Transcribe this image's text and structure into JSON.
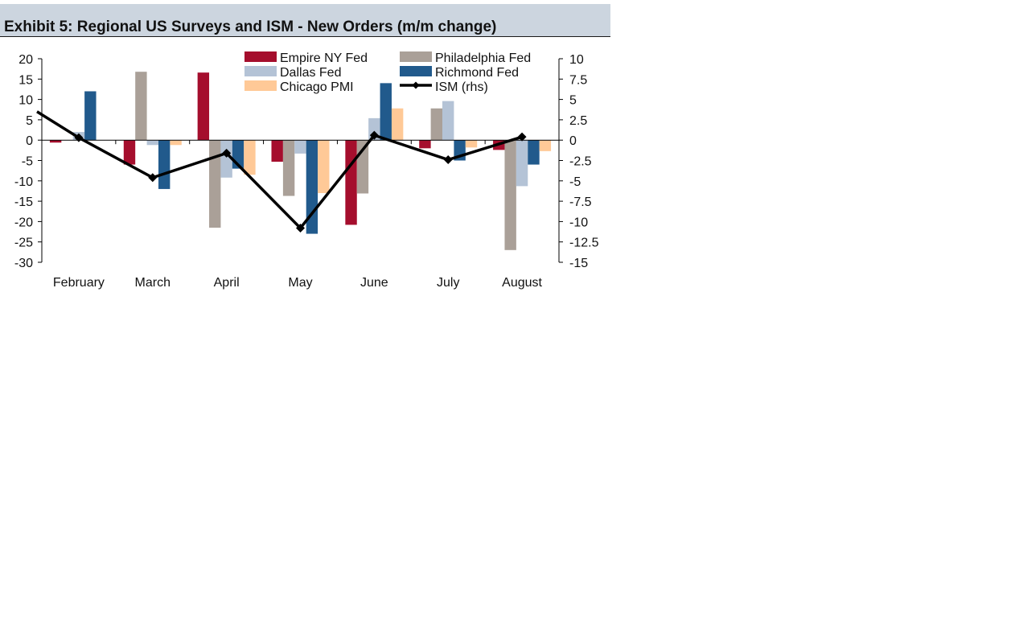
{
  "header": {
    "title": "Exhibit 5: Regional US Surveys and ISM - New Orders (m/m change)"
  },
  "colors": {
    "header_bg": "#ccd5df",
    "empire": "#a50e2d",
    "philadelphia": "#aaa098",
    "dallas": "#b4c3d6",
    "richmond": "#215a8c",
    "chicago": "#ffc997",
    "ism": "#000000"
  },
  "chart_data": {
    "type": "bar",
    "title": "Exhibit 5: Regional US Surveys and ISM - New Orders (m/m change)",
    "categories": [
      "February",
      "March",
      "April",
      "May",
      "June",
      "July",
      "August"
    ],
    "series": [
      {
        "name": "Empire NY Fed",
        "color_key": "empire",
        "axis": "left",
        "values": [
          -0.6,
          -6.0,
          16.6,
          -5.3,
          -20.8,
          -2.0,
          -2.4
        ]
      },
      {
        "name": "Philadelphia Fed",
        "color_key": "philadelphia",
        "axis": "left",
        "values": [
          0.0,
          16.8,
          -21.5,
          -13.7,
          -13.1,
          7.8,
          -27.0
        ]
      },
      {
        "name": "Dallas Fed",
        "color_key": "dallas",
        "axis": "left",
        "values": [
          2.0,
          -1.2,
          -9.2,
          -3.3,
          5.4,
          9.6,
          -11.3
        ]
      },
      {
        "name": "Richmond Fed",
        "color_key": "richmond",
        "axis": "left",
        "values": [
          12.0,
          -12.0,
          -7.0,
          -23.0,
          14.0,
          -5.0,
          -6.0
        ]
      },
      {
        "name": "Chicago PMI",
        "color_key": "chicago",
        "axis": "left",
        "values": [
          0.0,
          -1.2,
          -8.5,
          -13.0,
          7.8,
          -1.8,
          -2.7
        ]
      },
      {
        "name": "ISM (rhs)",
        "color_key": "ism",
        "axis": "right",
        "type": "line",
        "start_value": 3.5,
        "values": [
          0.3,
          -4.6,
          -1.6,
          -10.8,
          0.6,
          -2.4,
          0.4
        ]
      }
    ],
    "left_axis": {
      "ylim": [
        -30,
        20
      ],
      "ticks": [
        "20",
        "15",
        "10",
        "5",
        "0",
        "-5",
        "-10",
        "-15",
        "-20",
        "-25",
        "-30"
      ],
      "tick_values": [
        20,
        15,
        10,
        5,
        0,
        -5,
        -10,
        -15,
        -20,
        -25,
        -30
      ]
    },
    "right_axis": {
      "ylim": [
        -15,
        10
      ],
      "ticks": [
        "10",
        "7.5",
        "5",
        "2.5",
        "0",
        "-2.5",
        "-5",
        "-7.5",
        "-10",
        "-12.5",
        "-15"
      ],
      "tick_values": [
        10,
        7.5,
        5,
        2.5,
        0,
        -2.5,
        -5,
        -7.5,
        -10,
        -12.5,
        -15
      ]
    },
    "xlabel": "",
    "ylabel": "",
    "legend_position": "top-center",
    "legend": [
      "Empire NY Fed",
      "Philadelphia Fed",
      "Dallas Fed",
      "Richmond Fed",
      "Chicago PMI",
      "ISM (rhs)"
    ]
  }
}
